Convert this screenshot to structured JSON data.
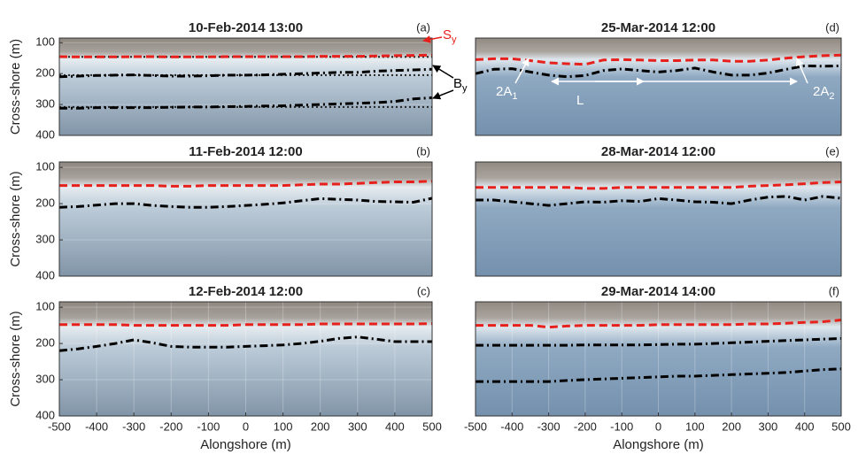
{
  "chart_data": [
    {
      "type": "line",
      "title": "10-Feb-2014 13:00",
      "panel_label": "(a)",
      "ylabel": "Cross-shore (m)",
      "xlim": [
        -500,
        500
      ],
      "ylim": [
        400,
        85
      ],
      "yticks": [
        100,
        200,
        300,
        400
      ],
      "x": [
        -500,
        -450,
        -400,
        -350,
        -300,
        -250,
        -200,
        -150,
        -100,
        -50,
        0,
        50,
        100,
        150,
        200,
        250,
        300,
        350,
        400,
        450,
        500
      ],
      "series": [
        {
          "color": "#e8201c",
          "style": "dashed",
          "values": [
            145,
            146,
            146,
            146,
            145,
            145,
            146,
            146,
            146,
            145,
            145,
            145,
            145,
            145,
            144,
            144,
            144,
            143,
            142,
            141,
            140
          ]
        },
        {
          "color": "#000000",
          "style": "dash-dot",
          "values": [
            210,
            208,
            206,
            205,
            204,
            206,
            208,
            208,
            207,
            205,
            205,
            204,
            202,
            200,
            198,
            196,
            196,
            192,
            190,
            188,
            186
          ]
        },
        {
          "color": "#000000",
          "style": "dash-dot",
          "values": [
            312,
            312,
            310,
            310,
            310,
            310,
            309,
            308,
            308,
            307,
            306,
            305,
            304,
            302,
            300,
            298,
            296,
            294,
            290,
            282,
            278
          ]
        }
      ],
      "hlines": [
        146,
        205,
        308
      ],
      "annotations": [
        {
          "text": "S",
          "subscript": "y",
          "color": "#e8201c"
        },
        {
          "text": "B",
          "subscript": "y",
          "color": "#000000"
        }
      ]
    },
    {
      "type": "line",
      "title": "11-Feb-2014 12:00",
      "panel_label": "(b)",
      "ylabel": "Cross-shore (m)",
      "xlim": [
        -500,
        500
      ],
      "ylim": [
        400,
        85
      ],
      "yticks": [
        100,
        200,
        300,
        400
      ],
      "x": [
        -500,
        -450,
        -400,
        -350,
        -300,
        -250,
        -200,
        -150,
        -100,
        -50,
        0,
        50,
        100,
        150,
        200,
        250,
        300,
        350,
        400,
        450,
        500
      ],
      "series": [
        {
          "color": "#e8201c",
          "style": "dashed",
          "values": [
            150,
            150,
            150,
            150,
            150,
            150,
            152,
            152,
            150,
            150,
            150,
            150,
            150,
            148,
            146,
            146,
            144,
            142,
            140,
            140,
            138
          ]
        },
        {
          "color": "#000000",
          "style": "dash-dot",
          "values": [
            210,
            208,
            204,
            200,
            200,
            205,
            208,
            210,
            210,
            208,
            205,
            202,
            198,
            192,
            186,
            188,
            190,
            194,
            195,
            196,
            185
          ]
        }
      ]
    },
    {
      "type": "line",
      "title": "12-Feb-2014 12:00",
      "panel_label": "(c)",
      "ylabel": "Cross-shore (m)",
      "xlabel": "Alongshore (m)",
      "xlim": [
        -500,
        500
      ],
      "ylim": [
        400,
        85
      ],
      "yticks": [
        100,
        200,
        300,
        400
      ],
      "xticks": [
        -500,
        -400,
        -300,
        -200,
        -100,
        0,
        100,
        200,
        300,
        400,
        500
      ],
      "x": [
        -500,
        -450,
        -400,
        -350,
        -300,
        -250,
        -200,
        -150,
        -100,
        -50,
        0,
        50,
        100,
        150,
        200,
        250,
        300,
        350,
        400,
        450,
        500
      ],
      "series": [
        {
          "color": "#e8201c",
          "style": "dashed",
          "values": [
            148,
            148,
            148,
            148,
            150,
            150,
            150,
            150,
            150,
            150,
            148,
            148,
            148,
            148,
            146,
            146,
            146,
            146,
            146,
            146,
            145
          ]
        },
        {
          "color": "#000000",
          "style": "dash-dot",
          "values": [
            220,
            215,
            208,
            200,
            190,
            198,
            208,
            210,
            210,
            210,
            208,
            206,
            204,
            200,
            194,
            186,
            182,
            188,
            195,
            195,
            195
          ]
        }
      ]
    },
    {
      "type": "line",
      "title": "25-Mar-2014 12:00",
      "panel_label": "(d)",
      "xlim": [
        -500,
        500
      ],
      "ylim": [
        400,
        85
      ],
      "x": [
        -500,
        -450,
        -400,
        -350,
        -300,
        -250,
        -200,
        -150,
        -100,
        -50,
        0,
        50,
        100,
        150,
        200,
        250,
        300,
        350,
        400,
        450,
        500
      ],
      "series": [
        {
          "color": "#e8201c",
          "style": "dashed",
          "values": [
            155,
            152,
            152,
            158,
            165,
            168,
            170,
            156,
            155,
            156,
            158,
            158,
            156,
            156,
            160,
            160,
            156,
            150,
            145,
            142,
            140
          ]
        },
        {
          "color": "#000000",
          "style": "dash-dot",
          "values": [
            200,
            186,
            184,
            195,
            205,
            210,
            206,
            190,
            185,
            190,
            195,
            190,
            182,
            195,
            205,
            205,
            198,
            186,
            175,
            176,
            175
          ]
        }
      ],
      "annotations": [
        {
          "text": "2A",
          "subscript": "1",
          "color": "#ffffff"
        },
        {
          "text": "L",
          "color": "#ffffff"
        },
        {
          "text": "2A",
          "subscript": "2",
          "color": "#ffffff"
        }
      ]
    },
    {
      "type": "line",
      "title": "28-Mar-2014 12:00",
      "panel_label": "(e)",
      "xlim": [
        -500,
        500
      ],
      "ylim": [
        400,
        85
      ],
      "x": [
        -500,
        -450,
        -400,
        -350,
        -300,
        -250,
        -200,
        -150,
        -100,
        -50,
        0,
        50,
        100,
        150,
        200,
        250,
        300,
        350,
        400,
        450,
        500
      ],
      "series": [
        {
          "color": "#e8201c",
          "style": "dashed",
          "values": [
            155,
            155,
            155,
            155,
            155,
            155,
            158,
            158,
            155,
            155,
            155,
            155,
            155,
            155,
            155,
            152,
            150,
            148,
            145,
            142,
            140
          ]
        },
        {
          "color": "#000000",
          "style": "dash-dot",
          "values": [
            190,
            190,
            195,
            200,
            205,
            200,
            195,
            196,
            192,
            194,
            186,
            190,
            195,
            196,
            200,
            190,
            182,
            180,
            190,
            180,
            185
          ]
        }
      ]
    },
    {
      "type": "line",
      "title": "29-Mar-2014 14:00",
      "panel_label": "(f)",
      "xlabel": "Alongshore (m)",
      "xlim": [
        -500,
        500
      ],
      "ylim": [
        400,
        85
      ],
      "xticks": [
        -500,
        -400,
        -300,
        -200,
        -100,
        0,
        100,
        200,
        300,
        400,
        500
      ],
      "x": [
        -500,
        -450,
        -400,
        -350,
        -300,
        -250,
        -200,
        -150,
        -100,
        -50,
        0,
        50,
        100,
        150,
        200,
        250,
        300,
        350,
        400,
        450,
        500
      ],
      "series": [
        {
          "color": "#e8201c",
          "style": "dashed",
          "values": [
            150,
            150,
            150,
            150,
            155,
            152,
            150,
            150,
            150,
            150,
            148,
            148,
            148,
            148,
            148,
            146,
            146,
            144,
            142,
            140,
            135
          ]
        },
        {
          "color": "#000000",
          "style": "dash-dot",
          "values": [
            205,
            205,
            205,
            205,
            205,
            205,
            204,
            204,
            204,
            204,
            203,
            202,
            202,
            200,
            198,
            196,
            194,
            192,
            190,
            188,
            186
          ]
        },
        {
          "color": "#000000",
          "style": "dash-dot",
          "values": [
            305,
            305,
            305,
            305,
            305,
            302,
            300,
            298,
            296,
            294,
            292,
            290,
            290,
            288,
            286,
            284,
            282,
            280,
            276,
            272,
            270
          ]
        }
      ]
    }
  ]
}
